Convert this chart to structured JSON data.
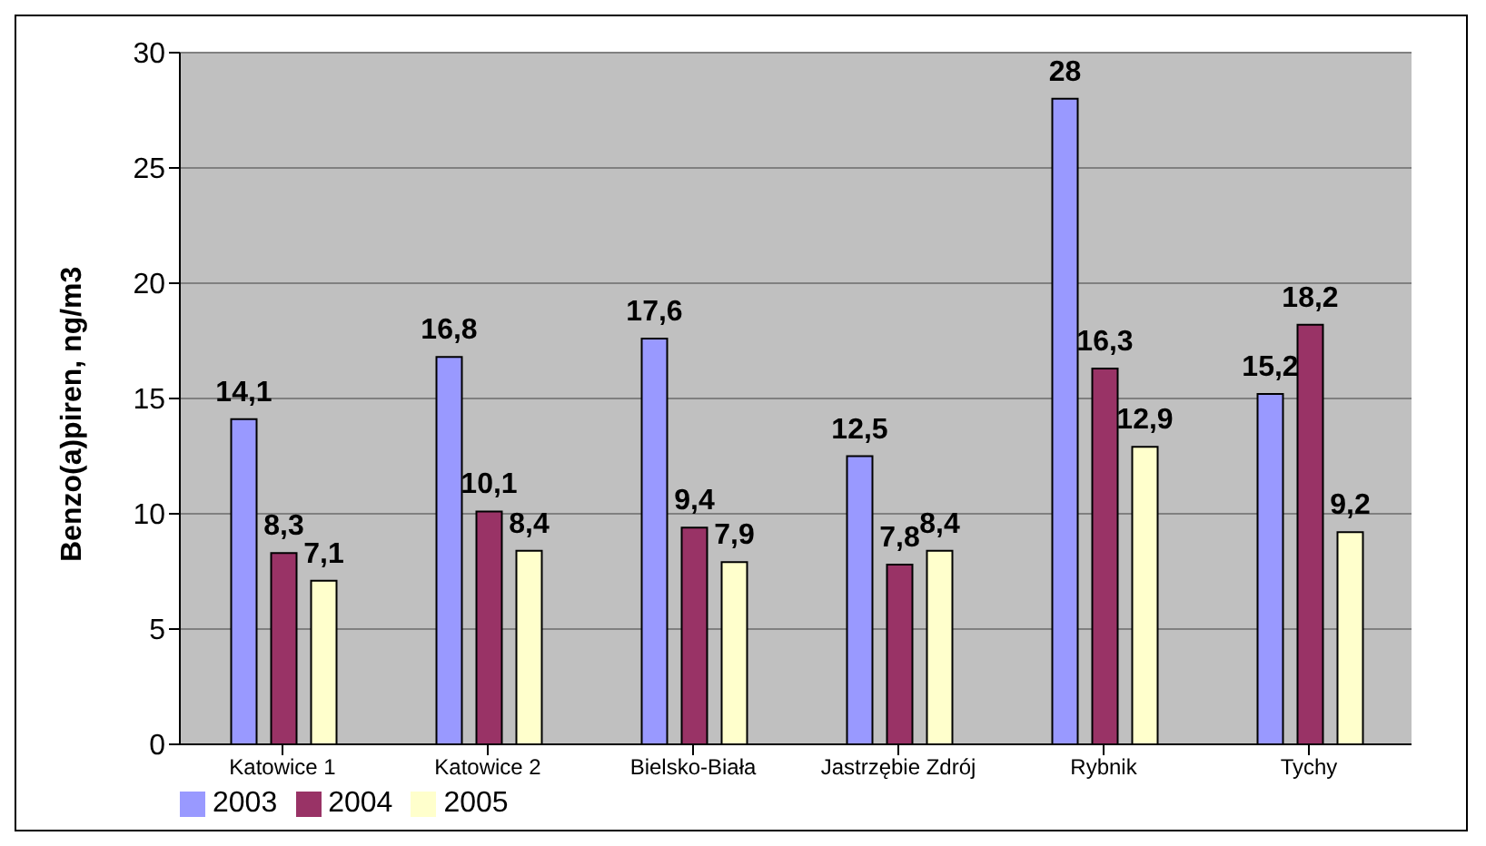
{
  "chart_data": {
    "type": "bar",
    "ylabel": "Benzo(a)piren, ng/m3",
    "categories": [
      "Katowice 1",
      "Katowice 2",
      "Bielsko-Biała",
      "Jastrzębie Zdrój",
      "Rybnik",
      "Tychy"
    ],
    "series": [
      {
        "name": "2003",
        "color": "#9999ff",
        "values": [
          14.1,
          16.8,
          17.6,
          12.5,
          28,
          15.2
        ],
        "value_labels": [
          "14,1",
          "16,8",
          "17,6",
          "12,5",
          "28",
          "15,2"
        ]
      },
      {
        "name": "2004",
        "color": "#993366",
        "values": [
          8.3,
          10.1,
          9.4,
          7.8,
          16.3,
          18.2
        ],
        "value_labels": [
          "8,3",
          "10,1",
          "9,4",
          "7,8",
          "16,3",
          "18,2"
        ]
      },
      {
        "name": "2005",
        "color": "#ffffcc",
        "values": [
          7.1,
          8.4,
          7.9,
          8.4,
          12.9,
          9.2
        ],
        "value_labels": [
          "7,1",
          "8,4",
          "7,9",
          "8,4",
          "12,9",
          "9,2"
        ]
      }
    ],
    "ylim": [
      0,
      30
    ],
    "yticks": [
      0,
      5,
      10,
      15,
      20,
      25,
      30
    ],
    "grid": "y",
    "legend": "bottom left"
  }
}
